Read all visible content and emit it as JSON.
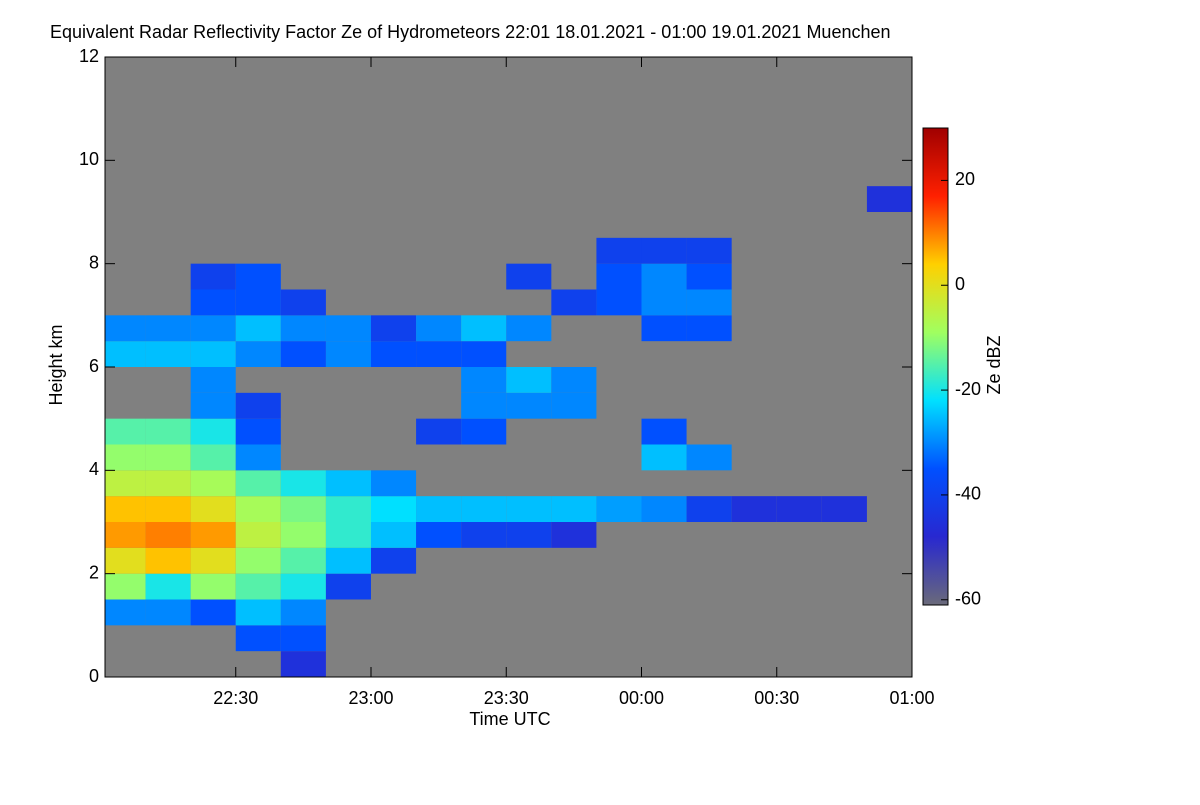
{
  "chart_data": {
    "type": "heatmap",
    "title": "Equivalent Radar Reflectivity Factor Ze of Hydrometeors   22:01 18.01.2021 - 01:00 19.01.2021 Muenchen",
    "xlabel": "Time UTC",
    "ylabel": "Height km",
    "colorbar_label": "Ze dBZ",
    "xlim": [
      1321,
      1500
    ],
    "xticks": [
      {
        "value": 1350,
        "label": "22:30"
      },
      {
        "value": 1380,
        "label": "23:00"
      },
      {
        "value": 1410,
        "label": "23:30"
      },
      {
        "value": 1440,
        "label": "00:00"
      },
      {
        "value": 1470,
        "label": "00:30"
      },
      {
        "value": 1500,
        "label": "01:00"
      }
    ],
    "ylim": [
      0,
      12
    ],
    "yticks": [
      0,
      2,
      4,
      6,
      8,
      10,
      12
    ],
    "clim": [
      -61,
      30
    ],
    "cticks": [
      -60,
      -40,
      -20,
      0,
      20
    ],
    "colormap": [
      "#6a6a7a",
      "#2828d0",
      "#0050ff",
      "#00e0ff",
      "#a0ff60",
      "#ffd000",
      "#ff2000",
      "#a00000"
    ],
    "background": "#808080",
    "xbins": [
      1320,
      1330,
      1340,
      1350,
      1360,
      1370,
      1380,
      1390,
      1400,
      1410,
      1420,
      1430,
      1440,
      1450,
      1460,
      1470,
      1480,
      1490,
      1500
    ],
    "ybins": [
      0,
      0.5,
      1,
      1.5,
      2,
      2.5,
      3,
      3.5,
      4,
      4.5,
      5,
      5.5,
      6,
      6.5,
      7,
      7.5,
      8,
      8.5,
      9,
      9.5,
      10,
      10.5,
      11,
      11.5,
      12
    ],
    "z": [
      [
        null,
        null,
        null,
        null,
        -45,
        null,
        null,
        null,
        null,
        null,
        null,
        null,
        null,
        null,
        null,
        null,
        null,
        null
      ],
      [
        null,
        null,
        null,
        -35,
        -35,
        null,
        null,
        null,
        null,
        null,
        null,
        null,
        null,
        null,
        null,
        null,
        null,
        null
      ],
      [
        -30,
        -30,
        -35,
        -25,
        -30,
        null,
        null,
        null,
        null,
        null,
        null,
        null,
        null,
        null,
        null,
        null,
        null,
        null
      ],
      [
        -10,
        -20,
        -10,
        -15,
        -20,
        -40,
        null,
        null,
        null,
        null,
        null,
        null,
        null,
        null,
        null,
        null,
        null,
        null
      ],
      [
        0,
        5,
        0,
        -10,
        -15,
        -25,
        -40,
        null,
        null,
        null,
        null,
        null,
        null,
        null,
        null,
        null,
        null,
        null
      ],
      [
        8,
        10,
        8,
        -5,
        -10,
        -18,
        -25,
        -35,
        -40,
        -40,
        -45,
        null,
        null,
        null,
        null,
        null,
        null,
        null
      ],
      [
        5,
        5,
        0,
        -8,
        -12,
        -18,
        -22,
        -25,
        -25,
        -25,
        -25,
        -28,
        -30,
        -40,
        -45,
        -45,
        -45,
        null
      ],
      [
        -5,
        -5,
        -8,
        -15,
        -20,
        -25,
        -30,
        null,
        null,
        null,
        null,
        null,
        null,
        null,
        null,
        null,
        null,
        null
      ],
      [
        -10,
        -10,
        -15,
        -30,
        null,
        null,
        null,
        null,
        null,
        null,
        null,
        null,
        -25,
        -30,
        null,
        null,
        null,
        null
      ],
      [
        -15,
        -15,
        -20,
        -35,
        null,
        null,
        null,
        -40,
        -35,
        null,
        null,
        null,
        -35,
        null,
        null,
        null,
        null,
        null
      ],
      [
        null,
        null,
        -30,
        -40,
        null,
        null,
        null,
        null,
        -30,
        -30,
        -30,
        null,
        null,
        null,
        null,
        null,
        null,
        null
      ],
      [
        null,
        null,
        -30,
        null,
        null,
        null,
        null,
        null,
        -30,
        -25,
        -30,
        null,
        null,
        null,
        null,
        null,
        null,
        null
      ],
      [
        -25,
        -25,
        -25,
        -30,
        -35,
        -30,
        -35,
        -35,
        -35,
        null,
        null,
        null,
        null,
        null,
        null,
        null,
        null,
        null
      ],
      [
        -30,
        -30,
        -30,
        -25,
        -30,
        -30,
        -40,
        -30,
        -25,
        -30,
        null,
        null,
        -35,
        -35,
        null,
        null,
        null,
        null
      ],
      [
        null,
        null,
        -35,
        -35,
        -40,
        null,
        null,
        null,
        null,
        null,
        -40,
        -35,
        -30,
        -30,
        null,
        null,
        null,
        null
      ],
      [
        null,
        null,
        -40,
        -35,
        null,
        null,
        null,
        null,
        null,
        -40,
        null,
        -35,
        -30,
        -35,
        null,
        null,
        null,
        null
      ],
      [
        null,
        null,
        null,
        null,
        null,
        null,
        null,
        null,
        null,
        null,
        null,
        -40,
        -40,
        -40,
        null,
        null,
        null,
        null
      ],
      [
        null,
        null,
        null,
        null,
        null,
        null,
        null,
        null,
        null,
        null,
        null,
        null,
        null,
        null,
        null,
        null,
        null,
        null
      ],
      [
        null,
        null,
        null,
        null,
        null,
        null,
        null,
        null,
        null,
        null,
        null,
        null,
        null,
        null,
        null,
        null,
        null,
        -45
      ],
      [
        null,
        null,
        null,
        null,
        null,
        null,
        null,
        null,
        null,
        null,
        null,
        null,
        null,
        null,
        null,
        null,
        null,
        null
      ],
      [
        null,
        null,
        null,
        null,
        null,
        null,
        null,
        null,
        null,
        null,
        null,
        null,
        null,
        null,
        null,
        null,
        null,
        null
      ],
      [
        null,
        null,
        null,
        null,
        null,
        null,
        null,
        null,
        null,
        null,
        null,
        null,
        null,
        null,
        null,
        null,
        null,
        null
      ],
      [
        null,
        null,
        null,
        null,
        null,
        null,
        null,
        null,
        null,
        null,
        null,
        null,
        null,
        null,
        null,
        null,
        null,
        null
      ],
      [
        null,
        null,
        null,
        null,
        null,
        null,
        null,
        null,
        null,
        null,
        null,
        null,
        null,
        null,
        null,
        null,
        null,
        null
      ]
    ]
  }
}
